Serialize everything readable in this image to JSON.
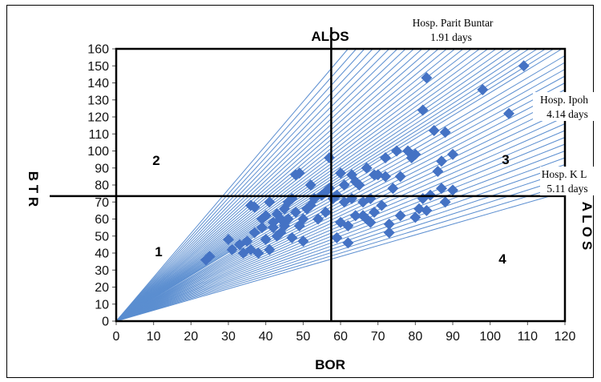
{
  "chart_data": {
    "type": "scatter",
    "title": "ALOS",
    "xlabel": "BOR",
    "ylabel": "B T R",
    "right_label": "A L O S",
    "xlim": [
      0,
      120
    ],
    "ylim": [
      0,
      160
    ],
    "x_ticks": [
      "0",
      "10",
      "20",
      "30",
      "40",
      "50",
      "60",
      "70",
      "80",
      "90",
      "100",
      "110",
      "120"
    ],
    "y_ticks": [
      "0",
      "10",
      "20",
      "30",
      "40",
      "50",
      "60",
      "70",
      "80",
      "90",
      "100",
      "110",
      "120",
      "130",
      "140",
      "150",
      "160"
    ],
    "grid": false,
    "marker_color": "#4472C4",
    "line_color": "#5B8ED0",
    "reference_lines": {
      "x": 57.5,
      "y": 73.5
    },
    "quadrant_labels": [
      {
        "text": "1",
        "x": 11,
        "y": 40
      },
      {
        "text": "2",
        "x": 11,
        "y": 92
      },
      {
        "text": "3",
        "x": 104,
        "y": 93
      },
      {
        "text": "4",
        "x": 103,
        "y": 37
      }
    ],
    "annotations": [
      {
        "line1": "Hosp. Parit Buntar",
        "line2": "1.91 days"
      },
      {
        "line1": "Hosp. Ipoh",
        "line2": "4.14 days"
      },
      {
        "line1": "Hosp. K L",
        "line2": "5.11 days"
      }
    ],
    "alos_lines_end_y": [
      160,
      160,
      160,
      160,
      160,
      160,
      160,
      160,
      160,
      160,
      160,
      160,
      160,
      160,
      160,
      160,
      160,
      160,
      160,
      160,
      160,
      160,
      160,
      160,
      160,
      160,
      160,
      156,
      152,
      148,
      144,
      140,
      136,
      132,
      128,
      124,
      120,
      116,
      112,
      108,
      104,
      100,
      96,
      92,
      88,
      84,
      80,
      76
    ],
    "series": [
      {
        "x": [
          24,
          25,
          30,
          31,
          33,
          34,
          35,
          36,
          36,
          37,
          37,
          38,
          39,
          39,
          40,
          40,
          41,
          41,
          42,
          42,
          43,
          43,
          44,
          44,
          45,
          45,
          46,
          46,
          47,
          47,
          48,
          48,
          49,
          49,
          50,
          50,
          51,
          52,
          52,
          53,
          54,
          55,
          56,
          56,
          57,
          57,
          58,
          59,
          59,
          60,
          60,
          61,
          61,
          62,
          62,
          63,
          63,
          64,
          64,
          65,
          66,
          66,
          67,
          67,
          68,
          68,
          69,
          69,
          70,
          71,
          72,
          72,
          73,
          73,
          74,
          75,
          76,
          76,
          78,
          79,
          80,
          80,
          81,
          82,
          82,
          83,
          83,
          84,
          85,
          86,
          87,
          87,
          88,
          88,
          90,
          90,
          98,
          105,
          109
        ],
        "y": [
          36,
          38,
          48,
          42,
          45,
          40,
          47,
          68,
          42,
          67,
          52,
          40,
          55,
          60,
          48,
          62,
          42,
          70,
          58,
          55,
          63,
          50,
          60,
          52,
          66,
          56,
          70,
          60,
          72,
          49,
          64,
          86,
          87,
          56,
          47,
          60,
          66,
          80,
          68,
          72,
          60,
          74,
          76,
          64,
          78,
          96,
          72,
          74,
          49,
          58,
          87,
          80,
          70,
          56,
          46,
          86,
          72,
          82,
          62,
          80,
          70,
          62,
          90,
          60,
          58,
          72,
          64,
          86,
          86,
          68,
          85,
          96,
          57,
          52,
          78,
          100,
          62,
          85,
          100,
          96,
          61,
          98,
          66,
          72,
          124,
          143,
          65,
          74,
          112,
          88,
          78,
          94,
          111,
          70,
          98,
          77,
          136,
          122,
          150
        ]
      }
    ]
  }
}
